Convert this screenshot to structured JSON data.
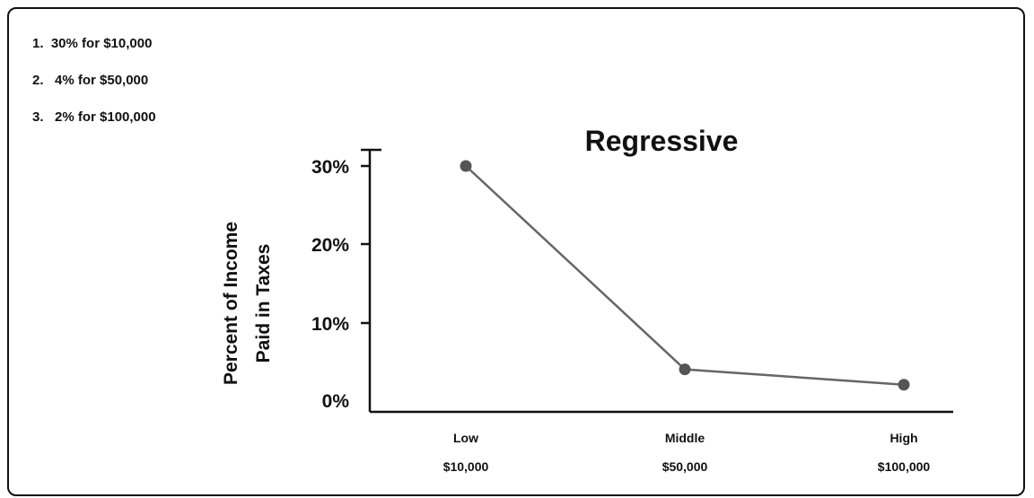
{
  "notes": [
    "1.  30% for $10,000",
    "2.   4% for $50,000",
    "3.   2% for $100,000"
  ],
  "chart_data": {
    "type": "line",
    "title": "Regressive",
    "ylabel_lines": [
      "Percent of Income",
      "Paid in Taxes"
    ],
    "categories": [
      "Low",
      "Middle",
      "High"
    ],
    "category_sublabels": [
      "$10,000",
      "$50,000",
      "$100,000"
    ],
    "series": [
      {
        "values": [
          30,
          4,
          2
        ]
      }
    ],
    "y_ticks": [
      0,
      10,
      20,
      30
    ],
    "y_tick_labels": [
      "0%",
      "10%",
      "20%",
      "30%"
    ],
    "ylim": [
      0,
      33
    ],
    "grid": false,
    "line_color": "#666666",
    "marker_color": "#555555"
  }
}
